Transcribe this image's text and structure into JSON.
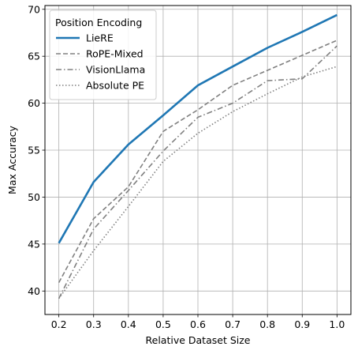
{
  "chart_data": {
    "type": "line",
    "xlabel": "Relative Dataset Size",
    "ylabel": "Max Accuracy",
    "xlim": [
      0.16,
      1.04
    ],
    "ylim": [
      37.5,
      70.4
    ],
    "xticks": [
      "0.2",
      "0.3",
      "0.4",
      "0.5",
      "0.6",
      "0.7",
      "0.8",
      "0.9",
      "1.0"
    ],
    "yticks": [
      "40",
      "45",
      "50",
      "55",
      "60",
      "65",
      "70"
    ],
    "x": [
      0.2,
      0.3,
      0.4,
      0.5,
      0.6,
      0.7,
      0.8,
      0.9,
      1.0
    ],
    "grid": true,
    "legend": {
      "title": "Position Encoding",
      "placement": "top-left"
    },
    "series": [
      {
        "name": "LieRE",
        "values": [
          45.1,
          51.6,
          55.6,
          58.7,
          61.9,
          63.9,
          65.9,
          67.6,
          69.4
        ],
        "color": "#1f77b4",
        "style": "solid"
      },
      {
        "name": "RoPE-Mixed",
        "values": [
          40.9,
          47.7,
          51.1,
          57.0,
          59.3,
          61.9,
          63.5,
          65.1,
          66.7
        ],
        "color": "#808080",
        "style": "dashed"
      },
      {
        "name": "VisionLlama",
        "values": [
          39.2,
          46.6,
          50.7,
          54.9,
          58.5,
          60.0,
          62.4,
          62.6,
          66.1
        ],
        "color": "#808080",
        "style": "dashdot"
      },
      {
        "name": "Absolute PE",
        "values": [
          39.2,
          44.3,
          49.0,
          53.8,
          56.8,
          59.1,
          61.0,
          62.8,
          63.9
        ],
        "color": "#808080",
        "style": "dotted"
      }
    ]
  }
}
